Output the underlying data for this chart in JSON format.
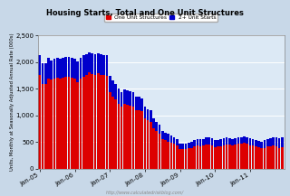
{
  "title": "Housing Starts, Total and One Unit Structures",
  "ylabel": "Units, Monthly at Seasonally Adjusted Annual Rate (000s)",
  "legend_labels": [
    "One Unit Structures",
    "2+ Unit Starts"
  ],
  "legend_colors": [
    "#dd0000",
    "#0000cc"
  ],
  "background_color": "#dce9f5",
  "outer_background": "#c8d8e8",
  "grid_color": "#ffffff",
  "x_tick_labels": [
    "Jan-05",
    "Jan-06",
    "Jan-07",
    "Jan-08",
    "Jan-09",
    "Jan-10",
    "Jan-11"
  ],
  "watermark": "http://www.calculatedriskblog.com/",
  "ylim": [
    0,
    2500
  ],
  "yticks": [
    0,
    500,
    1000,
    1500,
    2000,
    2500
  ],
  "single_family": [
    1750,
    1580,
    1590,
    1690,
    1670,
    1690,
    1710,
    1690,
    1700,
    1720,
    1720,
    1710,
    1680,
    1620,
    1690,
    1730,
    1760,
    1800,
    1780,
    1750,
    1790,
    1760,
    1750,
    1740,
    1430,
    1350,
    1290,
    1220,
    1160,
    1220,
    1200,
    1180,
    1170,
    1100,
    1100,
    1070,
    940,
    900,
    880,
    760,
    700,
    650,
    560,
    530,
    510,
    490,
    460,
    430,
    360,
    360,
    370,
    380,
    390,
    420,
    440,
    420,
    430,
    450,
    450,
    440,
    400,
    410,
    420,
    440,
    450,
    450,
    440,
    450,
    460,
    470,
    480,
    470,
    440,
    430,
    410,
    400,
    380,
    390,
    410,
    420,
    430,
    410,
    390,
    400
  ],
  "multi_family": [
    370,
    390,
    390,
    380,
    360,
    370,
    360,
    370,
    370,
    370,
    370,
    370,
    380,
    390,
    390,
    390,
    390,
    380,
    380,
    390,
    380,
    380,
    380,
    380,
    310,
    300,
    290,
    280,
    270,
    270,
    260,
    270,
    260,
    250,
    250,
    240,
    220,
    210,
    210,
    190,
    180,
    170,
    150,
    140,
    140,
    130,
    120,
    120,
    110,
    100,
    100,
    110,
    120,
    120,
    120,
    130,
    130,
    130,
    130,
    130,
    130,
    130,
    130,
    130,
    130,
    120,
    120,
    120,
    120,
    120,
    120,
    120,
    130,
    130,
    130,
    120,
    130,
    140,
    150,
    150,
    160,
    170,
    180,
    190
  ]
}
